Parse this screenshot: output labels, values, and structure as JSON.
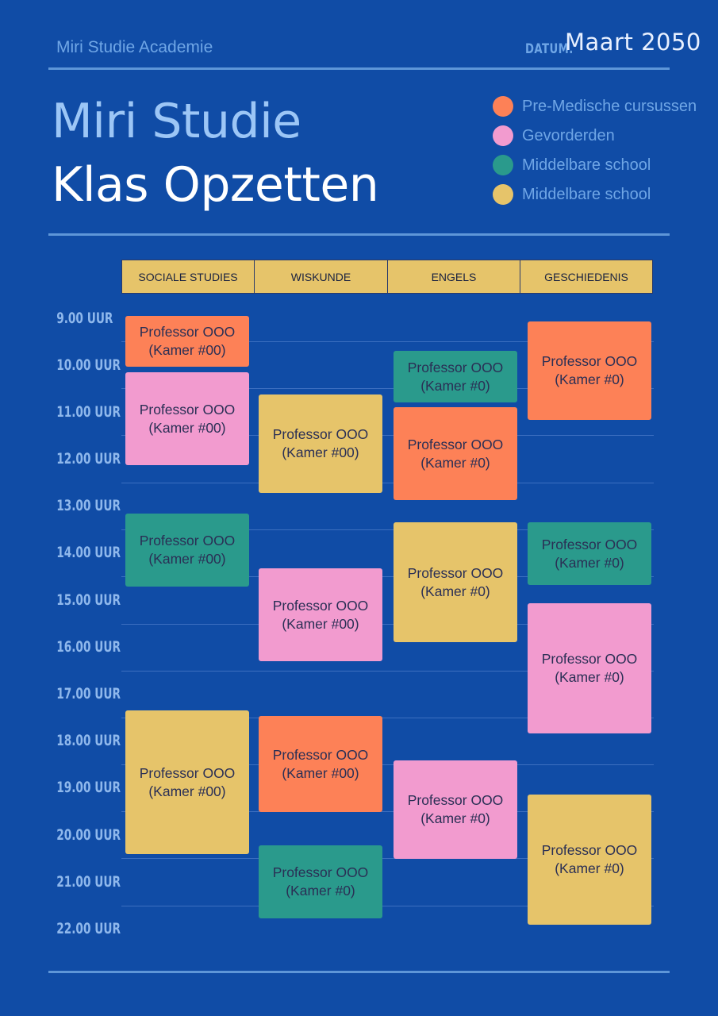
{
  "header": {
    "academy": "Miri Studie Academie",
    "date_label": "DATUM.",
    "date_value": "Maart 2050",
    "title_line1": "Miri Studie",
    "title_line2": "Klas Opzetten"
  },
  "legend": [
    {
      "label": "Pre-Medische cursussen",
      "color": "#fd8157"
    },
    {
      "label": "Gevorderden",
      "color": "#f29bcf"
    },
    {
      "label": "Middelbare school",
      "color": "#2a9a8c"
    },
    {
      "label": "Middelbare school",
      "color": "#e6c46a"
    }
  ],
  "columns": [
    "SOCIALE STUDIES",
    "WISKUNDE",
    "ENGELS",
    "GESCHIEDENIS"
  ],
  "times": [
    "9.00 UUR",
    "10.00 UUR",
    "11.00 UUR",
    "12.00 UUR",
    "13.00 UUR",
    "14.00 UUR",
    "15.00 UUR",
    "16.00 UUR",
    "17.00 UUR",
    "18.00 UUR",
    "19.00 UUR",
    "20.00 UUR",
    "21.00 UUR",
    "22.00 UUR"
  ],
  "blocks": {
    "ss1": {
      "professor": "Professor OOO",
      "room": "(Kamer #00)"
    },
    "ss2": {
      "professor": "Professor OOO",
      "room": "(Kamer #00)"
    },
    "ss3": {
      "professor": "Professor OOO",
      "room": "(Kamer #00)"
    },
    "ss4": {
      "professor": "Professor OOO",
      "room": "(Kamer #00)"
    },
    "wk1": {
      "professor": "Professor OOO",
      "room": "(Kamer #00)"
    },
    "wk2": {
      "professor": "Professor OOO",
      "room": "(Kamer #00)"
    },
    "wk3": {
      "professor": "Professor OOO",
      "room": "(Kamer #00)"
    },
    "wk4": {
      "professor": "Professor OOO",
      "room": "(Kamer #0)"
    },
    "en1": {
      "professor": "Professor OOO",
      "room": "(Kamer #0)"
    },
    "en2": {
      "professor": "Professor OOO",
      "room": "(Kamer #0)"
    },
    "en3": {
      "professor": "Professor OOO",
      "room": "(Kamer #0)"
    },
    "en4": {
      "professor": "Professor OOO",
      "room": "(Kamer #0)"
    },
    "gs1": {
      "professor": "Professor OOO",
      "room": "(Kamer #0)"
    },
    "gs2": {
      "professor": "Professor OOO",
      "room": "(Kamer #0)"
    },
    "gs3": {
      "professor": "Professor OOO",
      "room": "(Kamer #0)"
    },
    "gs4": {
      "professor": "Professor OOO",
      "room": "(Kamer #0)"
    }
  }
}
